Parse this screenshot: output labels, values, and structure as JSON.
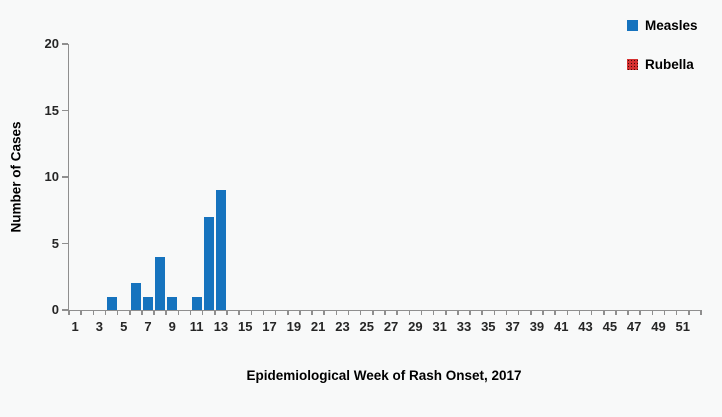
{
  "chart_data": {
    "type": "bar",
    "title": "",
    "xlabel": "Epidemiological Week of Rash Onset, 2017",
    "ylabel": "Number of Cases",
    "weeks": 52,
    "x_tick_labels": [
      "1",
      "3",
      "5",
      "7",
      "9",
      "11",
      "13",
      "15",
      "17",
      "19",
      "21",
      "23",
      "25",
      "27",
      "29",
      "31",
      "33",
      "35",
      "37",
      "39",
      "41",
      "43",
      "45",
      "47",
      "49",
      "51"
    ],
    "y_ticks": [
      0,
      5,
      10,
      15,
      20
    ],
    "ylim": [
      0,
      20
    ],
    "grid": false,
    "legend_position": "top-right",
    "background": "#f8f9f9",
    "series": [
      {
        "name": "Measles",
        "color": "#1673be",
        "fill": "solid",
        "values": [
          0,
          0,
          0,
          1,
          0,
          2,
          1,
          4,
          1,
          0,
          1,
          7,
          9,
          0,
          0,
          0,
          0,
          0,
          0,
          0,
          0,
          0,
          0,
          0,
          0,
          0,
          0,
          0,
          0,
          0,
          0,
          0,
          0,
          0,
          0,
          0,
          0,
          0,
          0,
          0,
          0,
          0,
          0,
          0,
          0,
          0,
          0,
          0,
          0,
          0,
          0,
          0
        ]
      },
      {
        "name": "Rubella",
        "color": "#c00000",
        "fill": "dotted-pattern",
        "values": [
          0,
          0,
          0,
          0,
          0,
          0,
          0,
          0,
          0,
          0,
          0,
          0,
          0,
          0,
          0,
          0,
          0,
          0,
          0,
          0,
          0,
          0,
          0,
          0,
          0,
          0,
          0,
          0,
          0,
          0,
          0,
          0,
          0,
          0,
          0,
          0,
          0,
          0,
          0,
          0,
          0,
          0,
          0,
          0,
          0,
          0,
          0,
          0,
          0,
          0,
          0,
          0
        ]
      }
    ]
  },
  "legend": {
    "items": [
      {
        "label": "Measles"
      },
      {
        "label": "Rubella"
      }
    ]
  }
}
